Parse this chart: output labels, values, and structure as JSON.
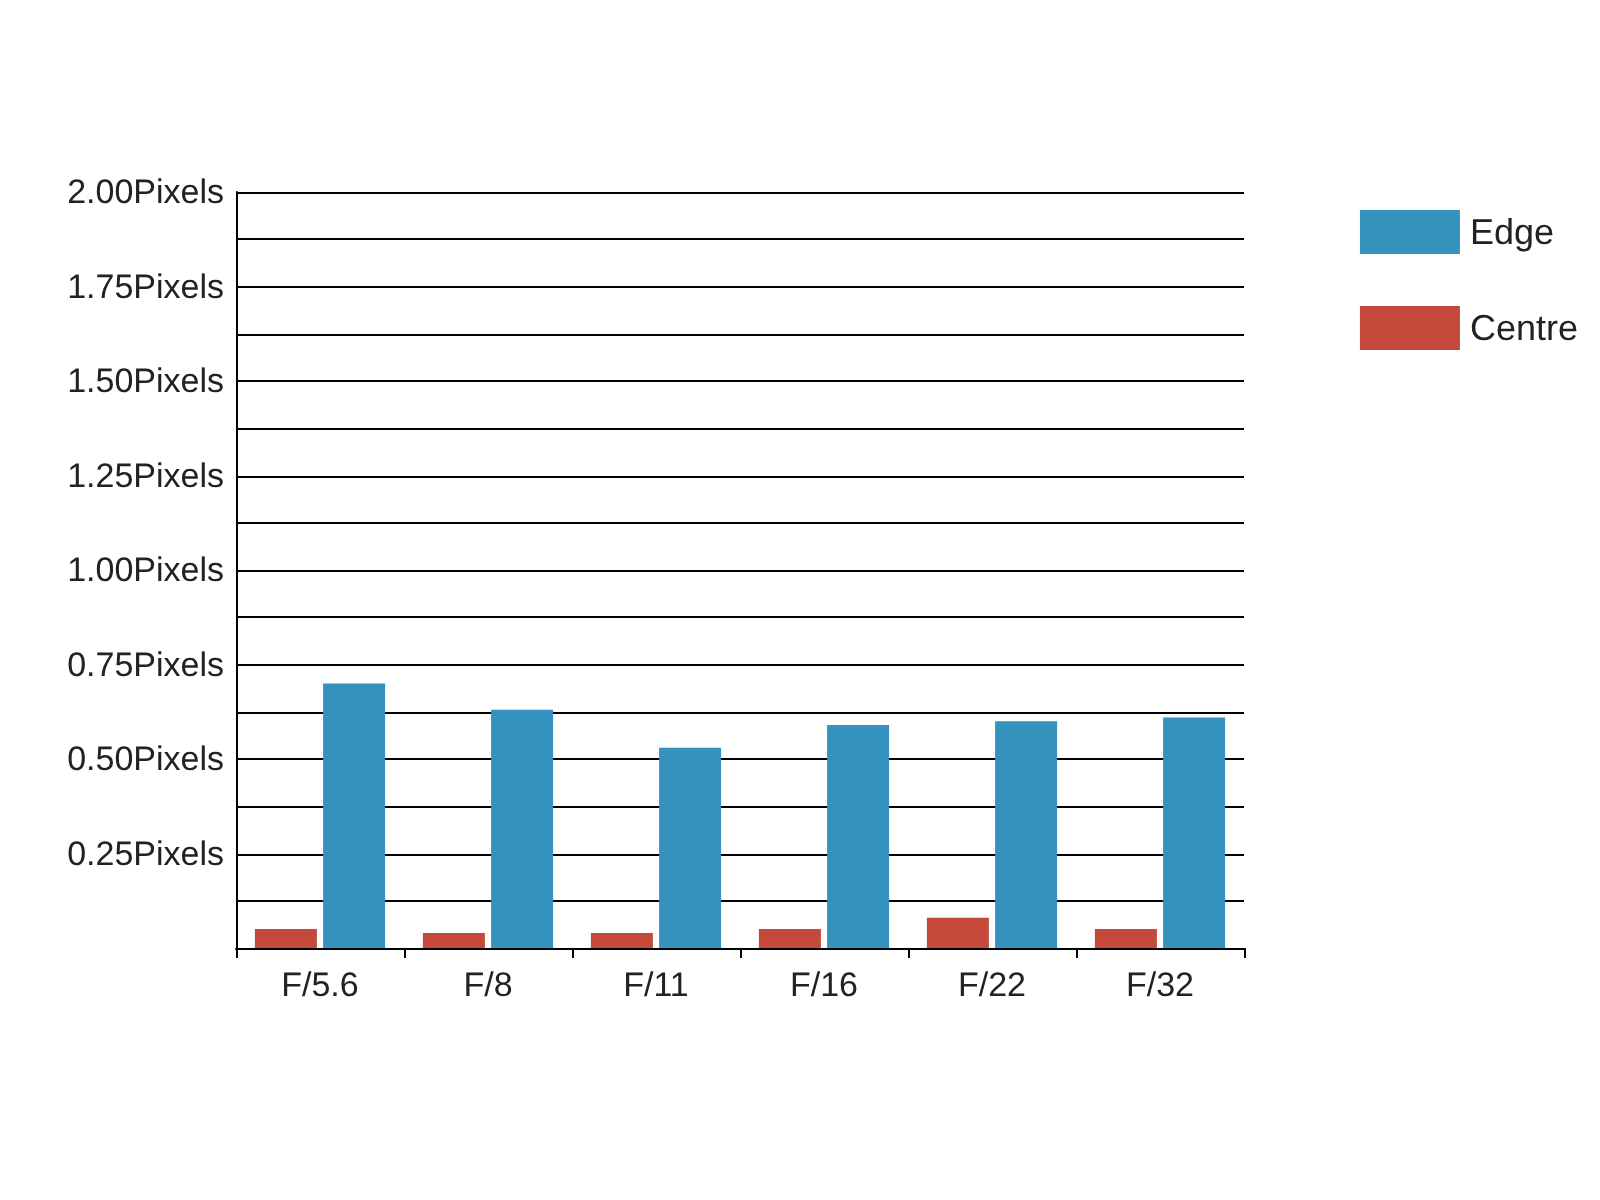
{
  "chart_data": {
    "type": "bar",
    "categories": [
      "F/5.6",
      "F/8",
      "F/11",
      "F/16",
      "F/22",
      "F/32"
    ],
    "series": [
      {
        "name": "Centre",
        "color": "#c4493a",
        "values": [
          0.05,
          0.04,
          0.04,
          0.05,
          0.08,
          0.05
        ]
      },
      {
        "name": "Edge",
        "color": "#3592bd",
        "values": [
          0.7,
          0.63,
          0.53,
          0.59,
          0.6,
          0.61
        ]
      }
    ],
    "ylim": [
      0,
      2
    ],
    "yticks": [
      {
        "value": 0,
        "label": null
      },
      {
        "value": 0.125,
        "label": null
      },
      {
        "value": 0.25,
        "label": "0.25Pixels"
      },
      {
        "value": 0.375,
        "label": null
      },
      {
        "value": 0.5,
        "label": "0.50Pixels"
      },
      {
        "value": 0.625,
        "label": null
      },
      {
        "value": 0.75,
        "label": "0.75Pixels"
      },
      {
        "value": 0.875,
        "label": null
      },
      {
        "value": 1,
        "label": "1.00Pixels"
      },
      {
        "value": 1.125,
        "label": null
      },
      {
        "value": 1.25,
        "label": "1.25Pixels"
      },
      {
        "value": 1.375,
        "label": null
      },
      {
        "value": 1.5,
        "label": "1.50Pixels"
      },
      {
        "value": 1.625,
        "label": null
      },
      {
        "value": 1.75,
        "label": "1.75Pixels"
      },
      {
        "value": 1.875,
        "label": null
      },
      {
        "value": 2,
        "label": "2.00Pixels"
      }
    ],
    "grid": true,
    "legend": "top right"
  }
}
